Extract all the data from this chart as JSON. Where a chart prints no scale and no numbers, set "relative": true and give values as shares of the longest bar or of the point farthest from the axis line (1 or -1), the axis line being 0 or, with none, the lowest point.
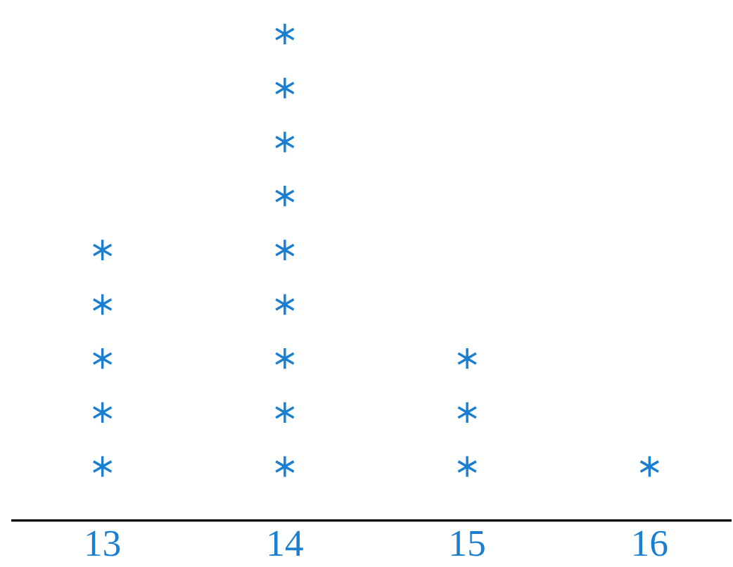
{
  "chart_data": {
    "type": "scatter",
    "relative": true,
    "xlim": [
      12.5,
      16.45
    ],
    "xticks": [
      13,
      14,
      15,
      16
    ],
    "tick_labels": "x",
    "marker": "cross",
    "grid": false,
    "series": [
      {
        "color": "#1a7fd0",
        "x": [
          13,
          13,
          13,
          13,
          13,
          14,
          14,
          14,
          14,
          14,
          14,
          14,
          14,
          14,
          15,
          15,
          15,
          16
        ],
        "values": [
          0.111,
          0.222,
          0.333,
          0.444,
          0.556,
          0.111,
          0.222,
          0.333,
          0.444,
          0.556,
          0.667,
          0.778,
          0.889,
          1,
          0.111,
          0.222,
          0.333,
          0.111
        ]
      }
    ]
  }
}
